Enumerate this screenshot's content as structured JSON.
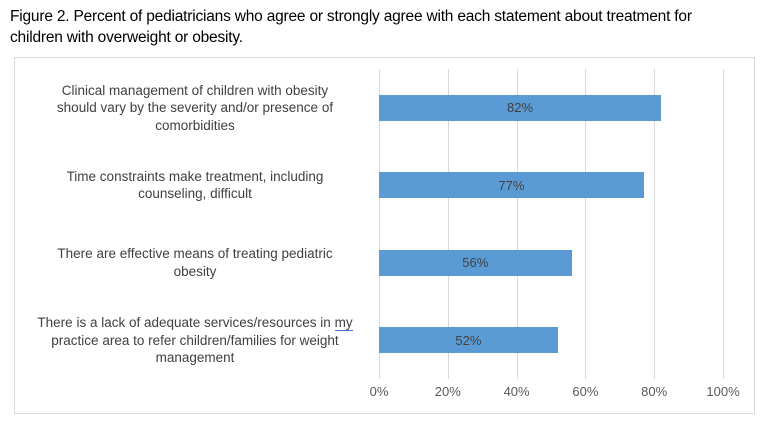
{
  "figure_title": "Figure 2. Percent of pediatricians who agree or strongly agree with each statement about treatment for children with overweight or obesity.",
  "figure_title_lines": [
    "Figure 2. Percent of pediatricians who agree or strongly agree with each statement about treatment for",
    "children with overweight or obesity."
  ],
  "chart_data": {
    "type": "bar",
    "orientation": "horizontal",
    "categories": [
      "Clinical management of children with obesity should vary by the severity and/or presence of comorbidities",
      "Time constraints make treatment, including counseling, difficult",
      "There are effective means of treating pediatric obesity",
      "There is a lack of adequate services/resources in my practice area to refer children/families for weight management"
    ],
    "category_lines": [
      [
        "Clinical management of children with obesity",
        "should vary by the severity and/or presence of",
        "comorbidities"
      ],
      [
        "Time constraints make treatment, including",
        "counseling, difficult"
      ],
      [
        "There are effective means of treating pediatric",
        "obesity"
      ],
      [
        "There is a lack of adequate services/resources in my",
        "practice area to refer children/families for weight",
        "management"
      ]
    ],
    "underlined_word": {
      "category_index": 3,
      "word": "my"
    },
    "values": [
      82,
      77,
      56,
      52
    ],
    "data_labels": [
      "82%",
      "77%",
      "56%",
      "52%"
    ],
    "x_ticks": [
      "0%",
      "20%",
      "40%",
      "60%",
      "80%",
      "100%"
    ],
    "x_tick_values": [
      0,
      20,
      40,
      60,
      80,
      100
    ],
    "xlim": [
      0,
      100
    ],
    "grid": true,
    "legend": false,
    "colors": {
      "bar": "#5B9BD5",
      "data_label": "#404040",
      "category_label": "#404040",
      "axis_text": "#595959",
      "gridline": "#D9D9D9",
      "frame_border": "#D9D9D9",
      "underline": "#4472C4",
      "background": "#FFFFFF",
      "title_text": "#000000"
    }
  }
}
